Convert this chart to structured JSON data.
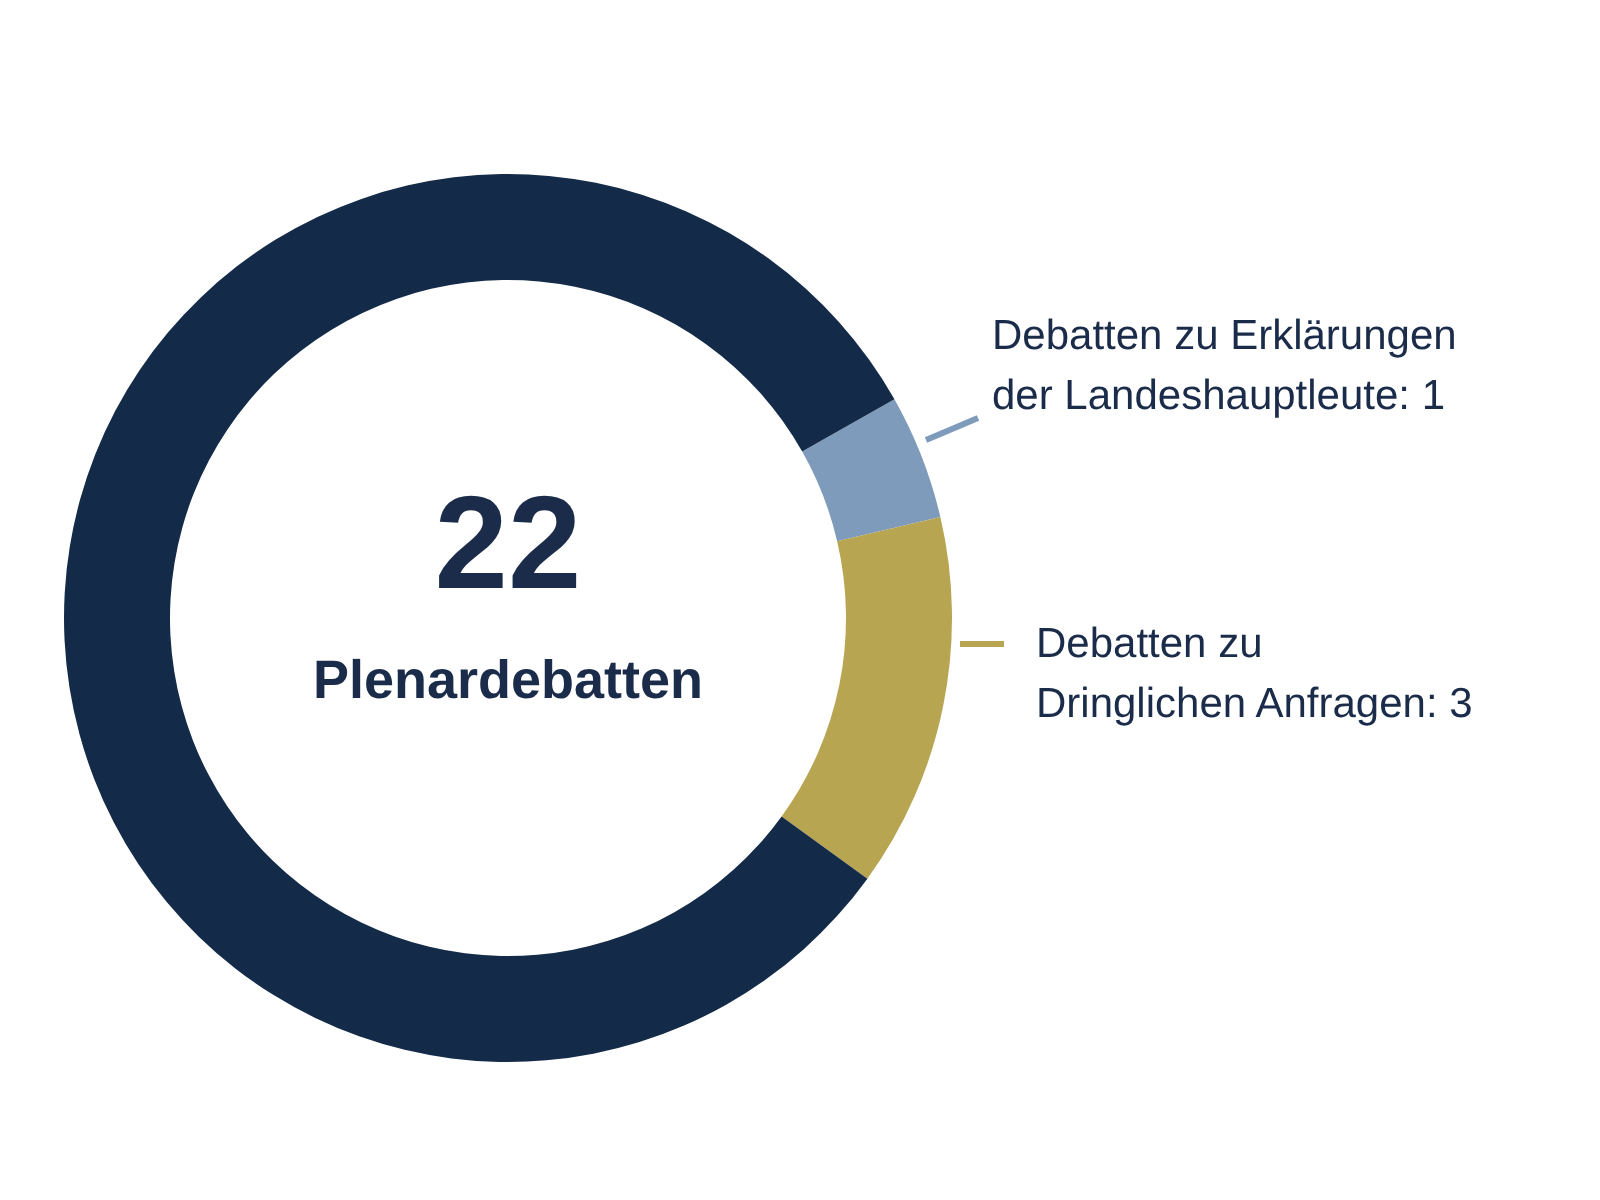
{
  "chart_data": {
    "type": "donut",
    "categories": [
      "Debatten zu Erklärungen der Landeshauptleute",
      "Debatten zu Dringlichen Anfragen",
      null
    ],
    "values": [
      1,
      3,
      18
    ],
    "colors": [
      "#7f9bbb",
      "#b8a552",
      "#132a48"
    ],
    "value_labels": [
      "1",
      "3",
      null
    ],
    "annotations": [
      "22",
      "Plenardebatten"
    ]
  }
}
